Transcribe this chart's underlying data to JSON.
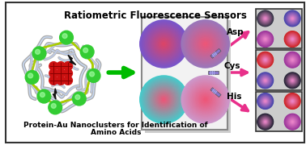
{
  "title_top": "Ratiometric Fluorescence Sensors",
  "title_bottom_line1": "Protein-Au Nanoclusters for Identification of",
  "title_bottom_line2": "Amino Acids",
  "bg_color": "#ffffff",
  "arrow_color": "#e8308a",
  "green_arrow_color": "#00bb00",
  "protein_green_color": "#33cc33",
  "circle_tl": {
    "outer": "#7755cc",
    "inner": "#dd4466"
  },
  "circle_tr": {
    "outer": "#9977bb",
    "inner": "#ee5577"
  },
  "circle_bl": {
    "outer": "#44cccc",
    "inner": "#ee5577"
  },
  "circle_br": {
    "outer": "#cc99cc",
    "inner": "#ee5577"
  },
  "grid_asp": [
    "#333344",
    "#4444aa",
    "#993399",
    "#cc2222"
  ],
  "grid_cys": [
    "#cc2222",
    "#993399",
    "#4444aa",
    "#222233"
  ],
  "grid_his": [
    "#4444aa",
    "#cc2222",
    "#222233",
    "#993399"
  ],
  "pen_color": "#8877cc",
  "pen_stripe": "#aaaaee"
}
